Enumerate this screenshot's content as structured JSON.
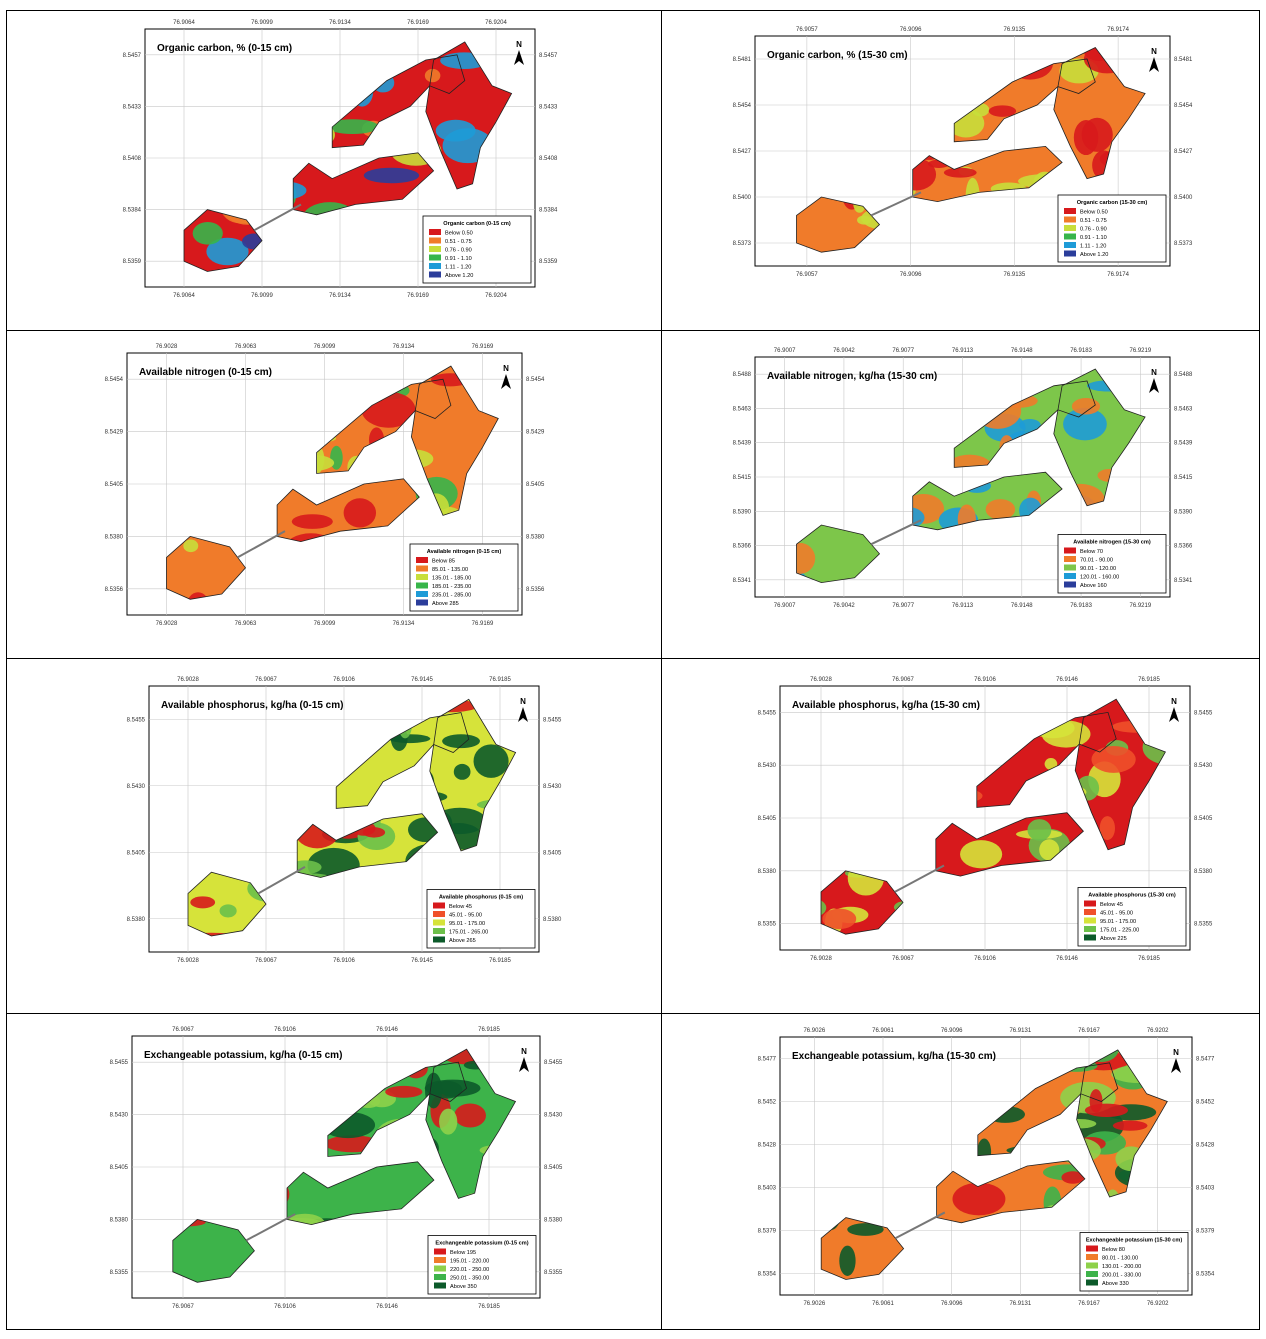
{
  "colors": {
    "oc": [
      "#d7191c",
      "#f07b2a",
      "#c8de3a",
      "#37b54a",
      "#1e9bd7",
      "#2b3d9b"
    ],
    "n15": [
      "#d7191c",
      "#f07b2a",
      "#c8de3a",
      "#37b54a",
      "#1e9bd7",
      "#2b3d9b"
    ],
    "n30": [
      "#d7191c",
      "#f07b2a",
      "#7dc64a",
      "#1e9bd7",
      "#2b3d9b"
    ],
    "p": [
      "#d7191c",
      "#f0502a",
      "#d6e33a",
      "#6cc04a",
      "#0c5a2a"
    ],
    "k": [
      "#d7191c",
      "#f07b2a",
      "#8ed14a",
      "#3db34a",
      "#0c5a2a"
    ]
  },
  "panels": [
    {
      "title": "Organic carbon, % (0-15 cm)",
      "north": "N",
      "top_ticks": [
        "76.9064",
        "76.9099",
        "76.9134",
        "76.9169",
        "76.9204"
      ],
      "bottom_ticks": [
        "76.9064",
        "76.9099",
        "76.9134",
        "76.9169",
        "76.9204"
      ],
      "left_ticks": [
        "8.5457",
        "8.5433",
        "8.5408",
        "8.5384",
        "8.5359"
      ],
      "right_ticks": [
        "8.5457",
        "8.5433",
        "8.5408",
        "8.5384",
        "8.5359"
      ],
      "legend_title": "Organic carbon (0-15 cm)",
      "legend": [
        "Below 0.50",
        "0.51 - 0.75",
        "0.76 - 0.90",
        "0.91 - 1.10",
        "1.11 - 1.20",
        "Above 1.20"
      ],
      "palette": "oc",
      "fill_mix": [
        0,
        1,
        2,
        3,
        4,
        5
      ]
    },
    {
      "title": "Organic carbon, % (15-30 cm)",
      "north": "N",
      "top_ticks": [
        "76.9057",
        "76.9096",
        "76.9135",
        "76.9174"
      ],
      "bottom_ticks": [
        "76.9057",
        "76.9096",
        "76.9135",
        "76.9174"
      ],
      "left_ticks": [
        "8.5481",
        "8.5454",
        "8.5427",
        "8.5400",
        "8.5373"
      ],
      "right_ticks": [
        "8.5481",
        "8.5454",
        "8.5427",
        "8.5400",
        "8.5373"
      ],
      "legend_title": "Organic carbon (15-30 cm)",
      "legend": [
        "Below 0.50",
        "0.51 - 0.75",
        "0.76 - 0.90",
        "0.91 - 1.10",
        "1.11 - 1.20",
        "Above 1.20"
      ],
      "palette": "oc",
      "fill_mix": [
        1,
        2,
        0
      ]
    },
    {
      "title": "Available nitrogen (0-15 cm)",
      "north": "N",
      "top_ticks": [
        "76.9028",
        "76.9063",
        "76.9099",
        "76.9134",
        "76.9169"
      ],
      "bottom_ticks": [
        "76.9028",
        "76.9063",
        "76.9099",
        "76.9134",
        "76.9169"
      ],
      "left_ticks": [
        "8.5454",
        "8.5429",
        "8.5405",
        "8.5380",
        "8.5356"
      ],
      "right_ticks": [
        "8.5454",
        "8.5429",
        "8.5405",
        "8.5380",
        "8.5356"
      ],
      "legend_title": "Available nitrogen (0-15 cm)",
      "legend": [
        "Below 85",
        "85.01 - 135.00",
        "135.01 - 185.00",
        "185.01 - 235.00",
        "235.01 - 285.00",
        "Above 285"
      ],
      "palette": "n15",
      "fill_mix": [
        1,
        2,
        0,
        3
      ]
    },
    {
      "title": "Available nitrogen, kg/ha (15-30 cm)",
      "north": "N",
      "top_ticks": [
        "76.9007",
        "76.9042",
        "76.9077",
        "76.9113",
        "76.9148",
        "76.9183",
        "76.9219"
      ],
      "bottom_ticks": [
        "76.9007",
        "76.9042",
        "76.9077",
        "76.9113",
        "76.9148",
        "76.9183",
        "76.9219"
      ],
      "left_ticks": [
        "8.5488",
        "8.5463",
        "8.5439",
        "8.5415",
        "8.5390",
        "8.5366",
        "8.5341"
      ],
      "right_ticks": [
        "8.5488",
        "8.5463",
        "8.5439",
        "8.5415",
        "8.5390",
        "8.5366",
        "8.5341"
      ],
      "legend_title": "Available nitrogen (15-30 cm)",
      "legend": [
        "Below 70",
        "70.01 - 90.00",
        "90.01 - 120.00",
        "120.01 - 160.00",
        "Above 160"
      ],
      "palette": "n30",
      "fill_mix": [
        2,
        1,
        3
      ]
    },
    {
      "title": "Available phosphorus, kg/ha (0-15 cm)",
      "north": "N",
      "top_ticks": [
        "76.9028",
        "76.9067",
        "76.9106",
        "76.9145",
        "76.9185"
      ],
      "bottom_ticks": [
        "76.9028",
        "76.9067",
        "76.9106",
        "76.9145",
        "76.9185"
      ],
      "left_ticks": [
        "8.5455",
        "8.5430",
        "8.5405",
        "8.5380"
      ],
      "right_ticks": [
        "8.5455",
        "8.5430",
        "8.5405",
        "8.5380"
      ],
      "legend_title": "Available phosphorus (0-15 cm)",
      "legend": [
        "Below 45",
        "45.01 - 95.00",
        "95.01 - 175.00",
        "175.01 - 265.00",
        "Above 265"
      ],
      "palette": "p",
      "fill_mix": [
        2,
        0,
        3,
        4
      ]
    },
    {
      "title": "Available phosphorus, kg/ha (15-30 cm)",
      "north": "N",
      "top_ticks": [
        "76.9028",
        "76.9067",
        "76.9106",
        "76.9146",
        "76.9185"
      ],
      "bottom_ticks": [
        "76.9028",
        "76.9067",
        "76.9106",
        "76.9146",
        "76.9185"
      ],
      "left_ticks": [
        "8.5455",
        "8.5430",
        "8.5405",
        "8.5380",
        "8.5355"
      ],
      "right_ticks": [
        "8.5455",
        "8.5430",
        "8.5405",
        "8.5380",
        "8.5355"
      ],
      "legend_title": "Available phosphorus (15-30 cm)",
      "legend": [
        "Below 45",
        "45.01 - 95.00",
        "95.01 - 175.00",
        "175.01 - 225.00",
        "Above 225"
      ],
      "palette": "p",
      "fill_mix": [
        0,
        1,
        2,
        3
      ]
    },
    {
      "title": "Exchangeable potassium, kg/ha (0-15 cm)",
      "north": "N",
      "top_ticks": [
        "76.9067",
        "76.9106",
        "76.9146",
        "76.9185"
      ],
      "bottom_ticks": [
        "76.9067",
        "76.9106",
        "76.9146",
        "76.9185"
      ],
      "left_ticks": [
        "8.5455",
        "8.5430",
        "8.5405",
        "8.5380",
        "8.5355"
      ],
      "right_ticks": [
        "8.5455",
        "8.5430",
        "8.5405",
        "8.5380",
        "8.5355"
      ],
      "legend_title": "Exchangeable potassium (0-15 cm)",
      "legend": [
        "Below 195",
        "195.01 - 220.00",
        "220.01 - 250.00",
        "250.01 - 350.00",
        "Above 350"
      ],
      "palette": "k",
      "fill_mix": [
        3,
        2,
        0,
        4
      ]
    },
    {
      "title": "Exchangeable potassium, kg/ha (15-30 cm)",
      "north": "N",
      "top_ticks": [
        "76.9026",
        "76.9061",
        "76.9096",
        "76.9131",
        "76.9167",
        "76.9202"
      ],
      "bottom_ticks": [
        "76.9026",
        "76.9061",
        "76.9096",
        "76.9131",
        "76.9167",
        "76.9202"
      ],
      "left_ticks": [
        "8.5477",
        "8.5452",
        "8.5428",
        "8.5403",
        "8.5379",
        "8.5354"
      ],
      "right_ticks": [
        "8.5477",
        "8.5452",
        "8.5428",
        "8.5403",
        "8.5379",
        "8.5354"
      ],
      "legend_title": "Exchangeable potassium (15-30 cm)",
      "legend": [
        "Below 80",
        "80.01 - 130.00",
        "130.01 - 200.00",
        "200.01 - 330.00",
        "Above 330"
      ],
      "palette": "k",
      "fill_mix": [
        1,
        2,
        0,
        3,
        4
      ]
    }
  ]
}
